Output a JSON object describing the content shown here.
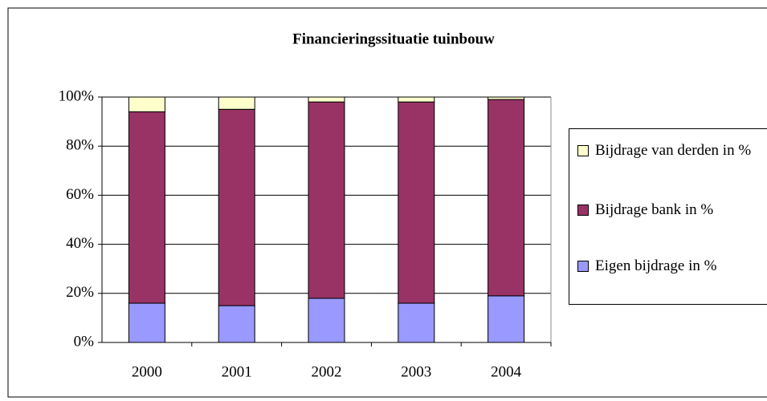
{
  "chart_data": {
    "type": "stacked_bar",
    "title": "Financieringssituatie tuinbouw",
    "categories": [
      "2000",
      "2001",
      "2002",
      "2003",
      "2004"
    ],
    "series": [
      {
        "name": "Eigen bijdrage in %",
        "color": "#9999ff",
        "values": [
          16,
          15,
          18,
          16,
          19
        ]
      },
      {
        "name": "Bijdrage bank in %",
        "color": "#993366",
        "values": [
          78,
          80,
          80,
          82,
          80
        ]
      },
      {
        "name": "Bijdrage van derden in %",
        "color": "#ffffcc",
        "values": [
          6,
          5,
          2,
          2,
          1
        ]
      }
    ],
    "ylim": [
      0,
      100
    ],
    "yticks": [
      {
        "value": 0,
        "label": "0%"
      },
      {
        "value": 20,
        "label": "20%"
      },
      {
        "value": 40,
        "label": "40%"
      },
      {
        "value": 60,
        "label": "60%"
      },
      {
        "value": 80,
        "label": "80%"
      },
      {
        "value": 100,
        "label": "100%"
      }
    ],
    "grid": true,
    "legend": "right"
  }
}
